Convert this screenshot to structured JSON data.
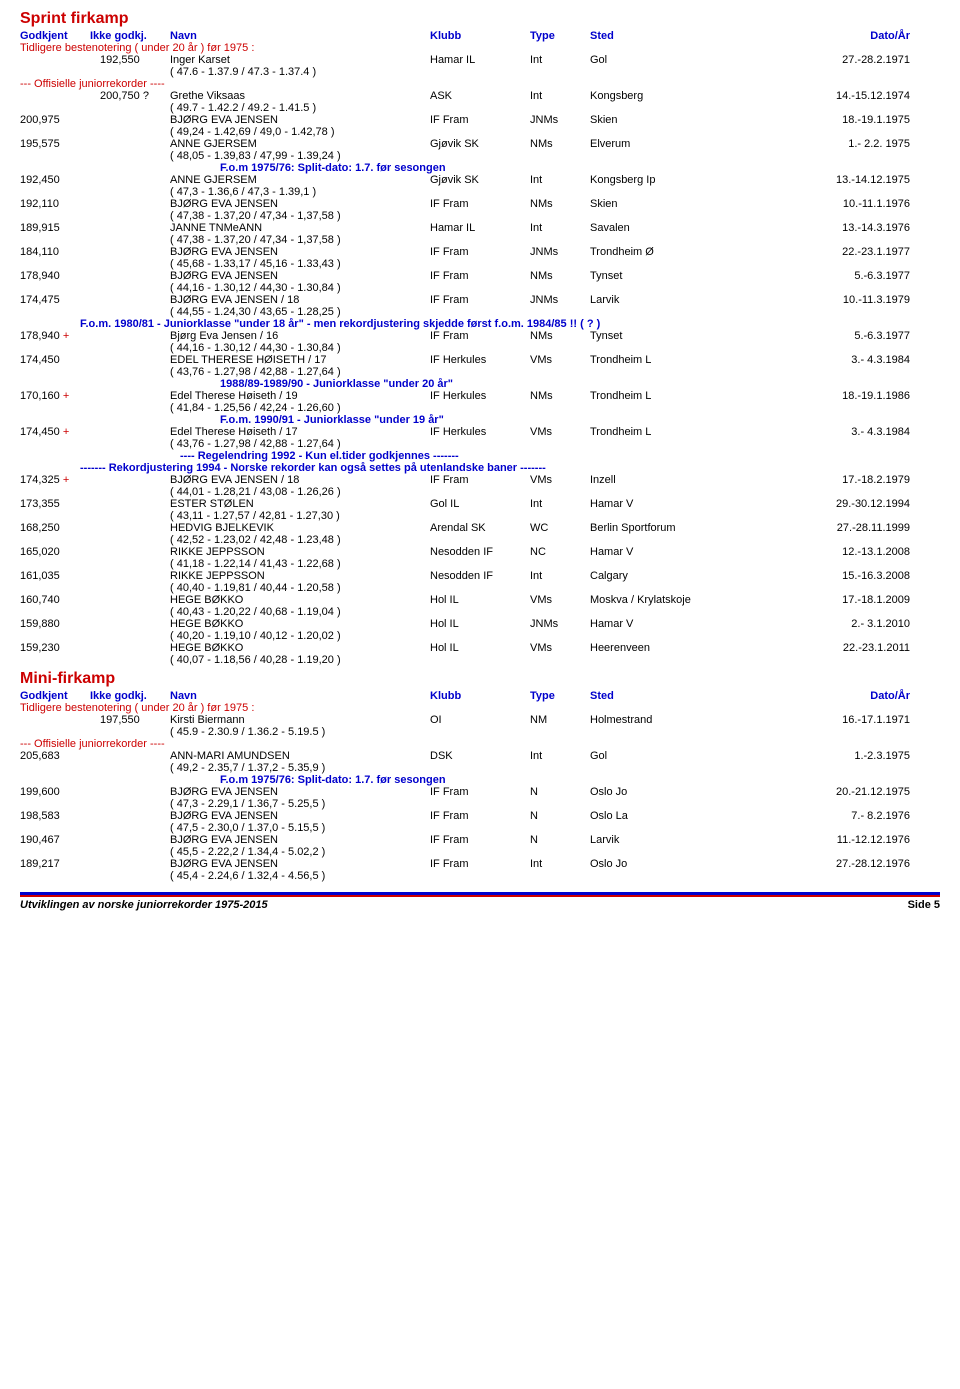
{
  "sprint": {
    "title": "Sprint firkamp",
    "hdr": {
      "c1": "Godkjent",
      "c2": "Ikke godkj.",
      "c3": "Navn",
      "c4": "Klubb",
      "c5": "Type",
      "c6": "Sted",
      "c7": "Dato/År"
    },
    "prevBest": "Tidligere bestenotering ( under 20 år ) før 1975 :",
    "row1": {
      "c1": "",
      "c2": "192,550",
      "c3": "Inger Karset",
      "c4": "Hamar IL",
      "c5": "Int",
      "c6": "Gol",
      "c7": "27.-28.2.1971"
    },
    "split1": "( 47.6 - 1.37.9 / 47.3 - 1.37.4 )",
    "offRec": "--- Offisielle juniorrekorder ----",
    "rows": [
      {
        "c1": "",
        "c2": "200,750 ?",
        "c3": "Grethe Viksaas",
        "c4": "ASK",
        "c5": "Int",
        "c6": "Kongsberg",
        "c7": "14.-15.12.1974",
        "split": "( 49.7 - 1.42.2 / 49.2 - 1.41.5 )"
      },
      {
        "c1": "200,975",
        "c2": "",
        "c3": "BJØRG EVA JENSEN",
        "c4": "IF Fram",
        "c5": "JNMs",
        "c6": "Skien",
        "c7": "18.-19.1.1975",
        "split": "( 49,24 - 1.42,69 / 49,0 - 1.42,78 )"
      },
      {
        "c1": "195,575",
        "c2": "",
        "c3": "ANNE GJERSEM",
        "c4": "Gjøvik SK",
        "c5": "NMs",
        "c6": "Elverum",
        "c7": "1.- 2.2. 1975",
        "split": "( 48,05 - 1.39,83 / 47,99 - 1.39,24 )"
      }
    ],
    "fom7576": "F.o.m 1975/76: Split-dato: 1.7. før sesongen",
    "rows2": [
      {
        "c1": "192,450",
        "c2": "",
        "c3": "ANNE GJERSEM",
        "c4": "Gjøvik SK",
        "c5": "Int",
        "c6": "Kongsberg Ip",
        "c7": "13.-14.12.1975",
        "split": "( 47,3 - 1.36,6 / 47,3 - 1.39,1 )"
      },
      {
        "c1": "192,110",
        "c2": "",
        "c3": "BJØRG EVA JENSEN",
        "c4": "IF Fram",
        "c5": "NMs",
        "c6": "Skien",
        "c7": "10.-11.1.1976",
        "split": "( 47,38 - 1.37,20 / 47,34 - 1,37,58 )"
      },
      {
        "c1": "189,915",
        "c2": "",
        "c3": "JANNE TNMeANN",
        "c4": "Hamar IL",
        "c5": "Int",
        "c6": "Savalen",
        "c7": "13.-14.3.1976",
        "split": "( 47,38 - 1.37,20 / 47,34 - 1,37,58 )"
      },
      {
        "c1": "184,110",
        "c2": "",
        "c3": "BJØRG EVA JENSEN",
        "c4": "IF Fram",
        "c5": "JNMs",
        "c6": "Trondheim Ø",
        "c7": "22.-23.1.1977",
        "split": "( 45,68 - 1.33,17 / 45,16 - 1.33,43 )"
      },
      {
        "c1": "178,940",
        "c2": "",
        "c3": "BJØRG EVA JENSEN",
        "c4": "IF Fram",
        "c5": "NMs",
        "c6": "Tynset",
        "c7": "5.-6.3.1977",
        "split": "( 44,16 - 1.30,12 / 44,30 - 1.30,84 )"
      },
      {
        "c1": "174,475",
        "c2": "",
        "c3": "BJØRG EVA JENSEN / 18",
        "c4": "IF Fram",
        "c5": "JNMs",
        "c6": "Larvik",
        "c7": "10.-11.3.1979",
        "split": "( 44,55 - 1.24,30 / 43,65 - 1.28,25 )"
      }
    ],
    "fom8081": "F.o.m. 1980/81 - Juniorklasse \"under 18 år\" - men rekordjustering skjedde først f.o.m. 1984/85 !! ( ? )",
    "rows3": [
      {
        "c1": "178,940",
        "plus": " +",
        "c2": "",
        "c3": "Bjørg Eva Jensen / 16",
        "c4": "IF Fram",
        "c5": "NMs",
        "c6": "Tynset",
        "c7": "5.-6.3.1977",
        "split": "( 44,16 - 1.30,12 / 44,30 - 1.30,84 )"
      },
      {
        "c1": "174,450",
        "c2": "",
        "c3": "EDEL THERESE HØISETH / 17",
        "c4": "IF Herkules",
        "c5": "VMs",
        "c6": "Trondheim L",
        "c7": "3.- 4.3.1984",
        "split": "( 43,76 - 1.27,98 / 42,88 - 1.27,64 )"
      }
    ],
    "sec8889": "1988/89-1989/90 - Juniorklasse \"under 20 år\"",
    "rows4": [
      {
        "c1": "170,160",
        "plus": " +",
        "c2": "",
        "c3": "Edel Therese Høiseth / 19",
        "c4": "IF Herkules",
        "c5": "NMs",
        "c6": "Trondheim L",
        "c7": "18.-19.1.1986",
        "split": "( 41,84 - 1.25,56 / 42,24 - 1.26,60 )"
      }
    ],
    "fom9091": "F.o.m. 1990/91 - Juniorklasse \"under 19 år\"",
    "rows5": [
      {
        "c1": "174,450",
        "plus": " +",
        "c2": "",
        "c3": "Edel Therese Høiseth / 17",
        "c4": "IF Herkules",
        "c5": "VMs",
        "c6": "Trondheim L",
        "c7": "3.- 4.3.1984",
        "split": "( 43,76 - 1.27,98 / 42,88 - 1.27,64 )"
      }
    ],
    "reg92": "---- Regelendring 1992 - Kun el.tider godkjennes -------",
    "rek94": "------- Rekordjustering 1994 - Norske rekorder kan også settes på utenlandske baner -------",
    "rows6": [
      {
        "c1": "174,325",
        "plus": " +",
        "c2": "",
        "c3": "BJØRG EVA JENSEN / 18",
        "c4": "IF Fram",
        "c5": "VMs",
        "c6": "Inzell",
        "c7": "17.-18.2.1979",
        "split": "( 44,01 - 1.28,21 / 43,08 - 1.26,26 )"
      },
      {
        "c1": "173,355",
        "c2": "",
        "c3": "ESTER STØLEN",
        "c4": "Gol IL",
        "c5": "Int",
        "c6": "Hamar V",
        "c7": "29.-30.12.1994",
        "split": "( 43,11 - 1.27,57 / 42,81 - 1.27,30 )"
      },
      {
        "c1": "168,250",
        "c2": "",
        "c3": "HEDVIG BJELKEVIK",
        "c4": "Arendal SK",
        "c5": "WC",
        "c6": "Berlin Sportforum",
        "c7": "27.-28.11.1999",
        "split": "( 42,52 - 1.23,02 / 42,48 - 1.23,48 )"
      },
      {
        "c1": "165,020",
        "c2": "",
        "c3": "RIKKE JEPPSSON",
        "c4": "Nesodden IF",
        "c5": "NC",
        "c6": "Hamar V",
        "c7": "12.-13.1.2008",
        "split": "( 41,18 - 1.22,14 / 41,43 - 1.22,68 )"
      },
      {
        "c1": "161,035",
        "c2": "",
        "c3": "RIKKE JEPPSSON",
        "c4": "Nesodden IF",
        "c5": "Int",
        "c6": "Calgary",
        "c7": "15.-16.3.2008",
        "split": "( 40,40 - 1.19,81 / 40,44 - 1.20,58 )"
      },
      {
        "c1": "160,740",
        "c2": "",
        "c3": "HEGE BØKKO",
        "c4": "Hol IL",
        "c5": "VMs",
        "c6": "Moskva / Krylatskoje",
        "c7": "17.-18.1.2009",
        "split": "( 40,43 - 1.20,22 / 40,68 - 1.19,04 )"
      },
      {
        "c1": "159,880",
        "c2": "",
        "c3": "HEGE BØKKO",
        "c4": "Hol IL",
        "c5": "JNMs",
        "c6": "Hamar V",
        "c7": "2.- 3.1.2010",
        "split": "( 40,20 - 1.19,10 / 40,12 - 1.20,02 )"
      },
      {
        "c1": "159,230",
        "c2": "",
        "c3": "HEGE BØKKO",
        "c4": "Hol IL",
        "c5": "VMs",
        "c6": "Heerenveen",
        "c7": "22.-23.1.2011",
        "split": "( 40,07 - 1.18,56 / 40,28 - 1.19,20 )"
      }
    ]
  },
  "mini": {
    "title": "Mini-firkamp",
    "hdr": {
      "c1": "Godkjent",
      "c2": "Ikke godkj.",
      "c3": "Navn",
      "c4": "Klubb",
      "c5": "Type",
      "c6": "Sted",
      "c7": "Dato/År"
    },
    "prevBest": "Tidligere bestenotering ( under 20 år ) før 1975 :",
    "row1": {
      "c1": "",
      "c2": "197,550",
      "c3": "Kirsti Biermann",
      "c4": "OI",
      "c5": "NM",
      "c6": "Holmestrand",
      "c7": "16.-17.1.1971"
    },
    "split1": "( 45.9 - 2.30.9 / 1.36.2 - 5.19.5 )",
    "offRec": "--- Offisielle juniorrekorder ----",
    "rows": [
      {
        "c1": "205,683",
        "c2": "",
        "c3": "ANN-MARI AMUNDSEN",
        "c4": "DSK",
        "c5": "Int",
        "c6": "Gol",
        "c7": "1.-2.3.1975",
        "split": "( 49,2 - 2.35,7 / 1.37,2 - 5.35,9 )"
      }
    ],
    "fom7576": "F.o.m 1975/76: Split-dato: 1.7. før sesongen",
    "rows2": [
      {
        "c1": "199,600",
        "c2": "",
        "c3": "BJØRG EVA JENSEN",
        "c4": "IF Fram",
        "c5": "N",
        "c6": "Oslo Jo",
        "c7": "20.-21.12.1975",
        "split": "( 47,3 - 2.29,1 / 1.36,7 - 5.25,5 )"
      },
      {
        "c1": "198,583",
        "c2": "",
        "c3": "BJØRG EVA JENSEN",
        "c4": "IF Fram",
        "c5": "N",
        "c6": "Oslo La",
        "c7": "7.- 8.2.1976",
        "split": "( 47,5 - 2.30,0 / 1.37,0 - 5.15,5 )"
      },
      {
        "c1": "190,467",
        "c2": "",
        "c3": "BJØRG EVA JENSEN",
        "c4": "IF Fram",
        "c5": "N",
        "c6": "Larvik",
        "c7": "11.-12.12.1976",
        "split": "( 45,5 - 2.22,2 / 1.34,4 - 5.02,2 )"
      },
      {
        "c1": "189,217",
        "c2": "",
        "c3": "BJØRG EVA JENSEN",
        "c4": "IF Fram",
        "c5": "Int",
        "c6": "Oslo Jo",
        "c7": "27.-28.12.1976",
        "split": "( 45,4 - 2.24,6 / 1.32,4 - 4.56,5 )"
      }
    ]
  },
  "footer": {
    "left": "Utviklingen av norske juniorrekorder 1975-2015",
    "right": "Side 5"
  }
}
